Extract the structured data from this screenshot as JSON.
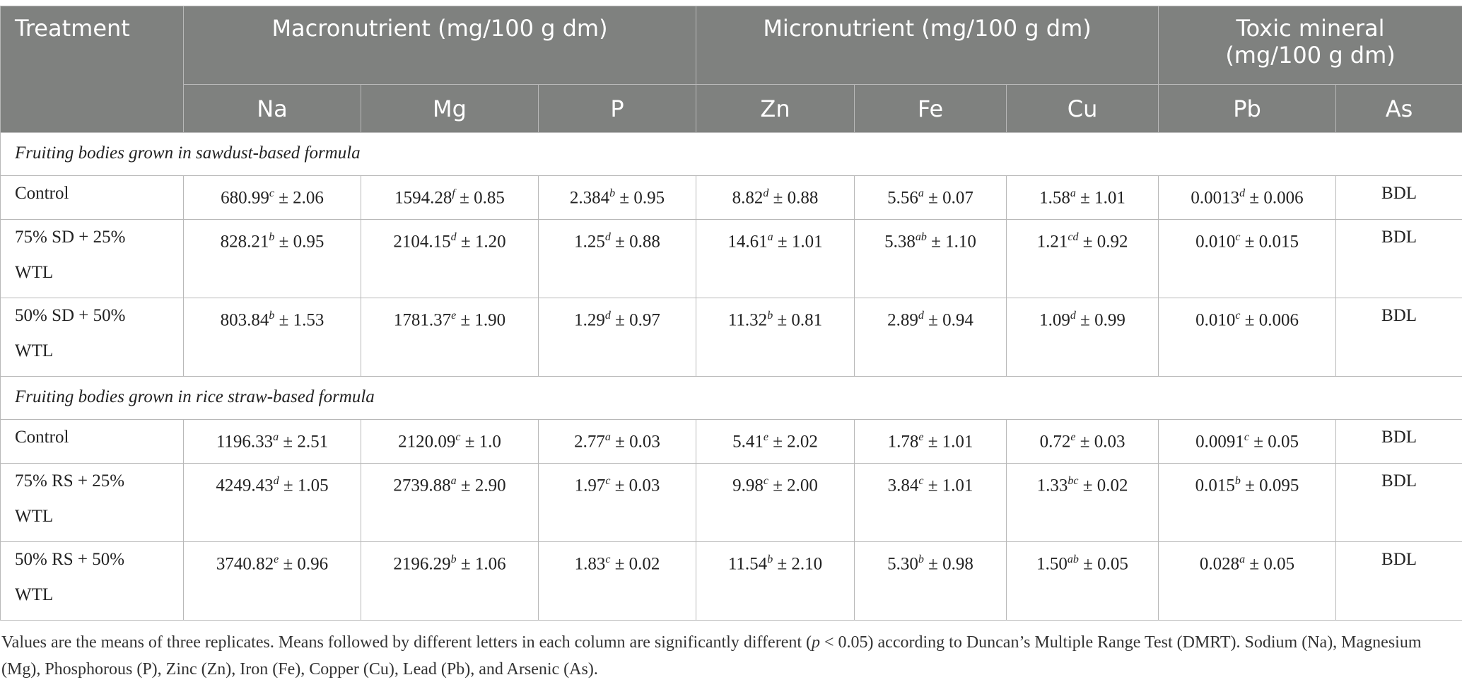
{
  "table": {
    "header": {
      "treatment": "Treatment",
      "groups": [
        "Macronutrient (mg/100 g dm)",
        "Micronutrient (mg/100 g dm)",
        "Toxic mineral (mg/100 g dm)"
      ],
      "columns": [
        "Na",
        "Mg",
        "P",
        "Zn",
        "Fe",
        "Cu",
        "Pb",
        "As"
      ]
    },
    "sections": [
      {
        "title": "Fruiting bodies grown in sawdust-based formula",
        "rows": [
          {
            "treatment": "Control",
            "cells": [
              [
                "680.99",
                "c",
                "± 2.06"
              ],
              [
                "1594.28",
                "f",
                "± 0.85"
              ],
              [
                "2.384",
                "b",
                "± 0.95"
              ],
              [
                "8.82",
                "d",
                "± 0.88"
              ],
              [
                "5.56",
                "a",
                "± 0.07"
              ],
              [
                "1.58",
                "a",
                "± 1.01"
              ],
              [
                "0.0013",
                "d",
                "± 0.006"
              ],
              [
                "BDL"
              ]
            ]
          },
          {
            "treatment": "75% SD + 25% WTL",
            "cells": [
              [
                "828.21",
                "b",
                "± 0.95"
              ],
              [
                "2104.15",
                "d",
                "± 1.20"
              ],
              [
                "1.25",
                "d",
                "± 0.88"
              ],
              [
                "14.61",
                "a",
                "± 1.01"
              ],
              [
                "5.38",
                "ab",
                "± 1.10"
              ],
              [
                "1.21",
                "cd",
                "± 0.92"
              ],
              [
                "0.010",
                "c",
                "± 0.015"
              ],
              [
                "BDL"
              ]
            ]
          },
          {
            "treatment": "50% SD + 50% WTL",
            "cells": [
              [
                "803.84",
                "b",
                "± 1.53"
              ],
              [
                "1781.37",
                "e",
                "± 1.90"
              ],
              [
                "1.29",
                "d",
                "± 0.97"
              ],
              [
                "11.32",
                "b",
                "± 0.81"
              ],
              [
                "2.89",
                "d",
                "± 0.94"
              ],
              [
                "1.09",
                "d",
                "± 0.99"
              ],
              [
                "0.010",
                "c",
                "± 0.006"
              ],
              [
                "BDL"
              ]
            ]
          }
        ]
      },
      {
        "title": "Fruiting bodies grown in rice straw-based formula",
        "rows": [
          {
            "treatment": "Control",
            "cells": [
              [
                "1196.33",
                "a",
                "± 2.51"
              ],
              [
                "2120.09",
                "c",
                "± 1.0"
              ],
              [
                "2.77",
                "a",
                "± 0.03"
              ],
              [
                "5.41",
                "e",
                "± 2.02"
              ],
              [
                "1.78",
                "e",
                "± 1.01"
              ],
              [
                "0.72",
                "e",
                "± 0.03"
              ],
              [
                "0.0091",
                "c",
                "± 0.05"
              ],
              [
                "BDL"
              ]
            ]
          },
          {
            "treatment": "75% RS + 25% WTL",
            "cells": [
              [
                "4249.43",
                "d",
                "± 1.05"
              ],
              [
                "2739.88",
                "a",
                "± 2.90"
              ],
              [
                "1.97",
                "c",
                "± 0.03"
              ],
              [
                "9.98",
                "c",
                "± 2.00"
              ],
              [
                "3.84",
                "c",
                "± 1.01"
              ],
              [
                "1.33",
                "bc",
                "± 0.02"
              ],
              [
                "0.015",
                "b",
                "± 0.095"
              ],
              [
                "BDL"
              ]
            ]
          },
          {
            "treatment": "50% RS + 50% WTL",
            "cells": [
              [
                "3740.82",
                "e",
                "± 0.96"
              ],
              [
                "2196.29",
                "b",
                "± 1.06"
              ],
              [
                "1.83",
                "c",
                "± 0.02"
              ],
              [
                "11.54",
                "b",
                "± 2.10"
              ],
              [
                "5.30",
                "b",
                "± 0.98"
              ],
              [
                "1.50",
                "ab",
                "± 0.05"
              ],
              [
                "0.028",
                "a",
                "± 0.05"
              ],
              [
                "BDL"
              ]
            ]
          }
        ]
      }
    ]
  },
  "footnote": [
    "Values are the means of three replicates. Means followed by different letters in each column are significantly different (",
    "p",
    " < 0.05) according to Duncan’s Multiple Range Test (DMRT). Sodium (Na), Magnesium (Mg), Phosphorous (P), Zinc (Zn), Iron (Fe), Copper (Cu), Lead (Pb), and Arsenic (As)."
  ]
}
